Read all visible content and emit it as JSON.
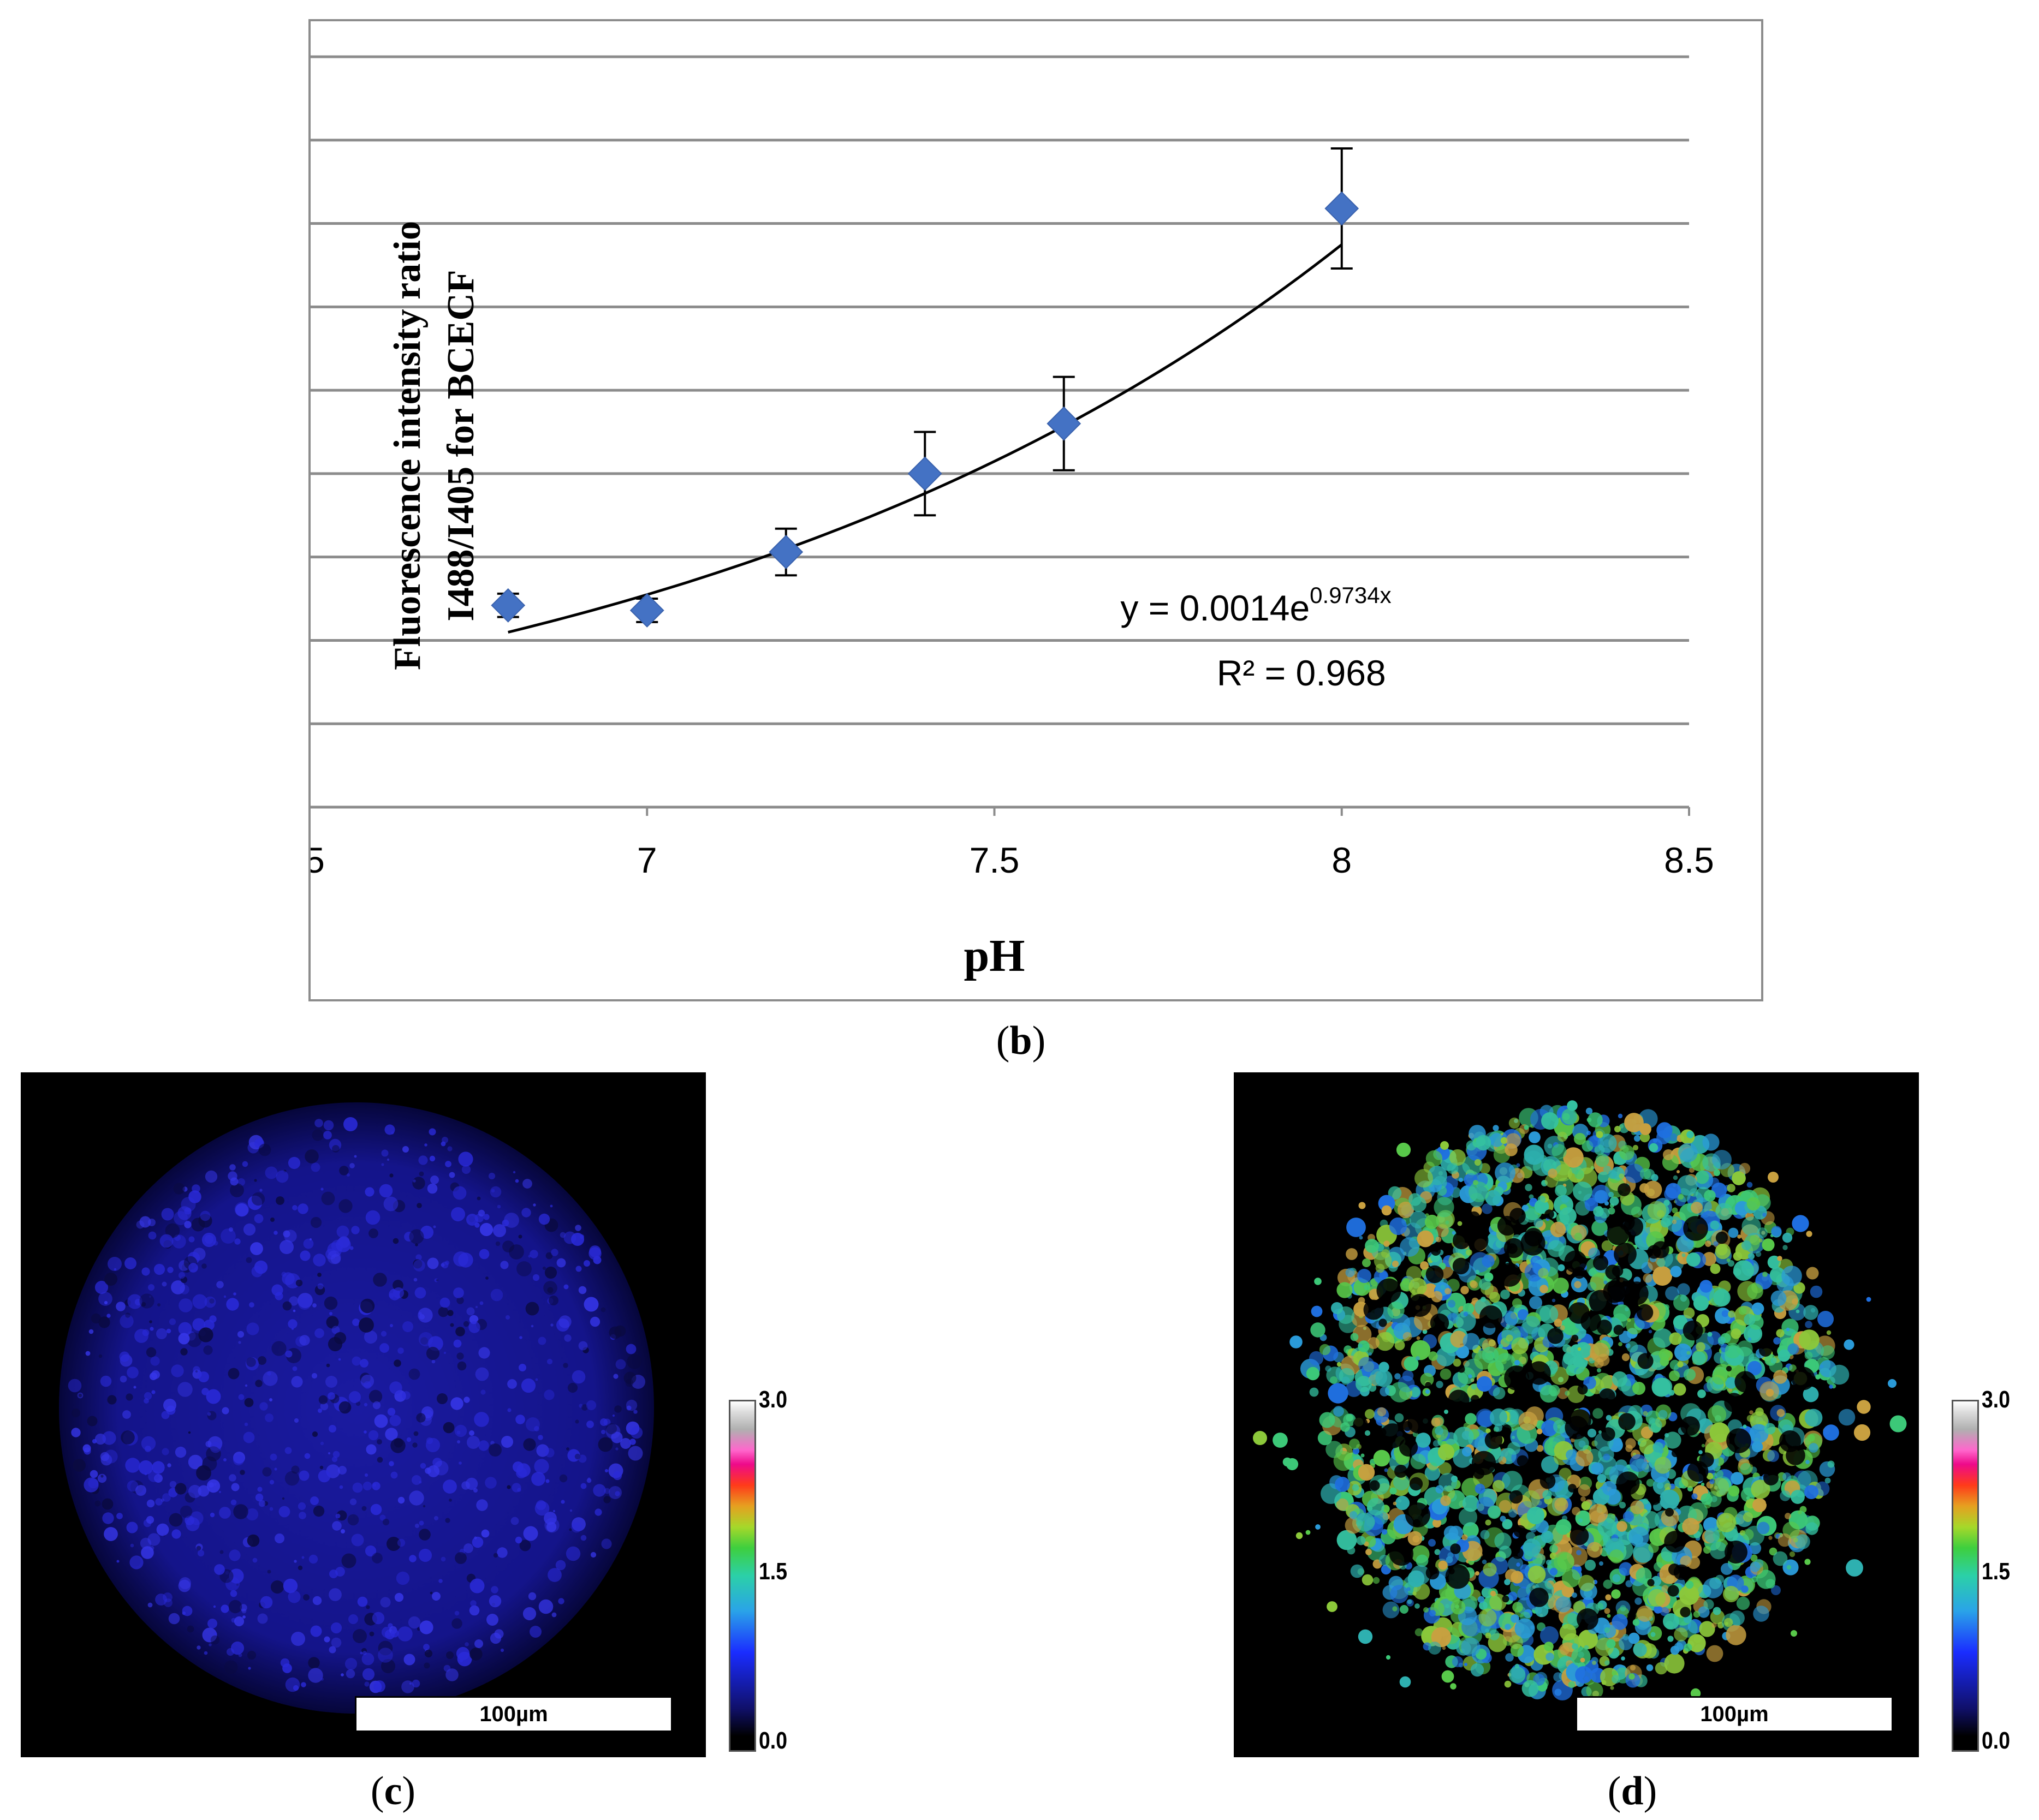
{
  "chart_data": {
    "type": "scatter",
    "title": "",
    "xlabel": "pH",
    "ylabel_lines": [
      "Fluorescence intensity ratio",
      "I488/I405 for BCECF"
    ],
    "xlim": [
      6.5,
      8.5
    ],
    "ylim": [
      0,
      4.5
    ],
    "xticks": [
      "6.5",
      "7",
      "7.5",
      "8",
      "8.5"
    ],
    "yticks": [
      "0",
      "0.5",
      "1",
      "1.5",
      "2",
      "2.5",
      "3",
      "3.5",
      "4",
      "4.5"
    ],
    "grid": true,
    "series": [
      {
        "name": "BCECF ratio",
        "x": [
          6.8,
          7.0,
          7.2,
          7.4,
          7.6,
          8.0
        ],
        "y": [
          1.21,
          1.18,
          1.53,
          2.0,
          2.3,
          3.59
        ],
        "err": [
          0.07,
          0.07,
          0.14,
          0.25,
          0.28,
          0.36
        ],
        "marker_color": "#4472c4"
      }
    ],
    "fit": {
      "type": "exponential",
      "a": 0.0014,
      "b": 0.9734,
      "x_range": [
        6.8,
        8.0
      ],
      "equation_main": "y = 0.0014e",
      "equation_exp": "0.9734x",
      "r2_label": "R² = 0.968"
    }
  },
  "captions": {
    "b": "b",
    "c": "c",
    "d": "d"
  },
  "panels": {
    "c": {
      "scale_label": "100µm",
      "colorbar_max": "3.0",
      "colorbar_mid": "1.5",
      "colorbar_min": "0.0"
    },
    "d": {
      "scale_label": "100µm",
      "colorbar_max": "3.0",
      "colorbar_mid": "1.5",
      "colorbar_min": "0.0"
    }
  }
}
